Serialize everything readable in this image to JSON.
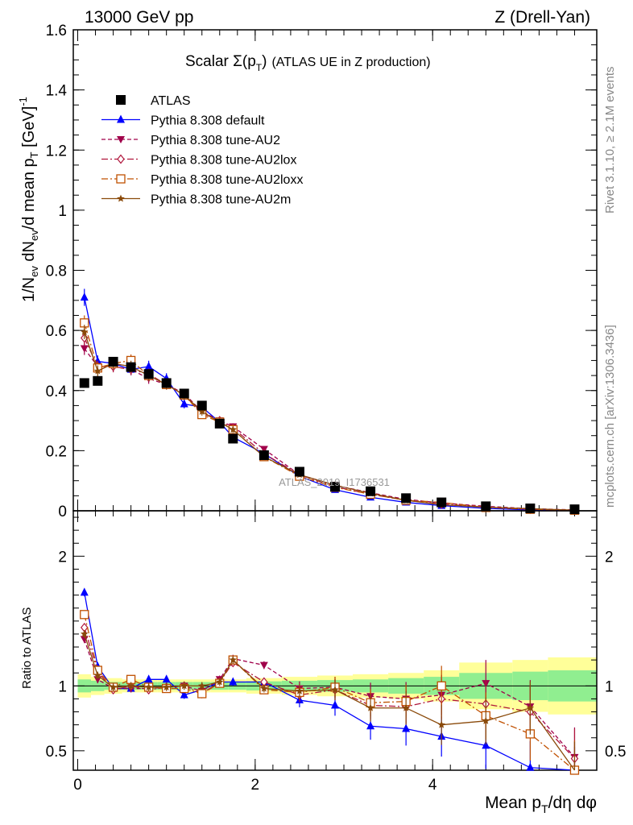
{
  "header": {
    "left": "13000 GeV pp",
    "right": "Z (Drell-Yan)"
  },
  "side_labels": {
    "rivet": "Rivet 3.1.10, ≥ 2.1M events",
    "mcplots": "mcplots.cern.ch [arXiv:1306.3436]"
  },
  "watermark": "ATLAS_2019_I1736531",
  "chart_data": {
    "type": "scatter",
    "title": "Scalar Σ(p_T) (ATLAS UE in Z production)",
    "xlabel": "Mean p_T/dη dφ",
    "ylabel_main": "1/N_ev dN_ev/d mean p_T [GeV]^-1",
    "ylabel_ratio": "Ratio to ATLAS",
    "xlim": [
      -0.05,
      5.85
    ],
    "ylim_main": [
      0,
      1.6
    ],
    "ylim_ratio": [
      0.35,
      2.35
    ],
    "x_ticks": [
      0,
      2,
      4
    ],
    "y_ticks_main": [
      0,
      0.2,
      0.4,
      0.6,
      0.8,
      1,
      1.2,
      1.4,
      1.6
    ],
    "y_ticks_ratio": [
      0.5,
      1,
      2
    ],
    "x": [
      0.075,
      0.225,
      0.4,
      0.6,
      0.8,
      1.0,
      1.2,
      1.4,
      1.6,
      1.75,
      2.1,
      2.5,
      2.9,
      3.3,
      3.7,
      4.1,
      4.6,
      5.1,
      5.6
    ],
    "series": [
      {
        "name": "ATLAS",
        "color": "#000000",
        "marker": "square-filled",
        "line": "none",
        "values": [
          0.425,
          0.432,
          0.496,
          0.478,
          0.455,
          0.425,
          0.39,
          0.35,
          0.29,
          0.24,
          0.185,
          0.13,
          0.08,
          0.065,
          0.042,
          0.028,
          0.015,
          0.008,
          0.005
        ],
        "ratio": [
          1,
          1,
          1,
          1,
          1,
          1,
          1,
          1,
          1,
          1,
          1,
          1,
          1,
          1,
          1,
          1,
          1,
          1,
          1
        ]
      },
      {
        "name": "Pythia 8.308 default",
        "color": "#0000ff",
        "marker": "triangle-up-filled",
        "line": "solid",
        "values": [
          0.71,
          0.497,
          0.49,
          0.47,
          0.48,
          0.44,
          0.355,
          0.345,
          0.295,
          0.245,
          0.19,
          0.115,
          0.07,
          0.045,
          0.028,
          0.017,
          0.008,
          0.003,
          0.001
        ],
        "ratio": [
          1.72,
          1.15,
          0.98,
          0.98,
          1.05,
          1.05,
          0.93,
          0.97,
          1.03,
          1.03,
          1.03,
          0.89,
          0.85,
          0.69,
          0.67,
          0.61,
          0.54,
          0.37,
          0.3
        ]
      },
      {
        "name": "Pythia 8.308 tune-AU2",
        "color": "#a0004a",
        "marker": "triangle-down-filled",
        "line": "dashed",
        "values": [
          0.54,
          0.48,
          0.48,
          0.47,
          0.44,
          0.42,
          0.39,
          0.33,
          0.3,
          0.28,
          0.205,
          0.12,
          0.085,
          0.06,
          0.038,
          0.026,
          0.015,
          0.007,
          0.003
        ],
        "ratio": [
          1.36,
          1.05,
          0.98,
          0.98,
          0.98,
          0.99,
          1.0,
          0.96,
          1.05,
          1.21,
          1.16,
          0.98,
          0.99,
          0.92,
          0.9,
          0.93,
          1.02,
          0.84,
          0.45
        ]
      },
      {
        "name": "Pythia 8.308 tune-AU2lox",
        "color": "#b0163c",
        "marker": "diamond-open",
        "line": "dashdot",
        "values": [
          0.575,
          0.48,
          0.48,
          0.47,
          0.455,
          0.42,
          0.385,
          0.325,
          0.3,
          0.275,
          0.19,
          0.12,
          0.08,
          0.055,
          0.035,
          0.022,
          0.012,
          0.005,
          0.002
        ],
        "ratio": [
          1.45,
          1.11,
          0.97,
          1.0,
          0.97,
          0.99,
          1.0,
          0.94,
          1.03,
          1.18,
          1.03,
          0.93,
          0.97,
          0.85,
          0.84,
          0.9,
          0.86,
          0.8,
          0.44
        ]
      },
      {
        "name": "Pythia 8.308 tune-AU2loxx",
        "color": "#c05000",
        "marker": "square-open",
        "line": "dashdot",
        "values": [
          0.625,
          0.475,
          0.49,
          0.5,
          0.45,
          0.42,
          0.385,
          0.32,
          0.295,
          0.27,
          0.18,
          0.115,
          0.078,
          0.055,
          0.035,
          0.028,
          0.011,
          0.005,
          0.002
        ],
        "ratio": [
          1.55,
          1.12,
          0.99,
          1.05,
          0.99,
          0.98,
          0.98,
          0.94,
          1.02,
          1.2,
          0.97,
          0.95,
          0.99,
          0.87,
          0.88,
          1.0,
          0.77,
          0.63,
          0.35
        ]
      },
      {
        "name": "Pythia 8.308 tune-AU2m",
        "color": "#8a4a0a",
        "marker": "star-filled",
        "line": "solid",
        "values": [
          0.595,
          0.465,
          0.49,
          0.48,
          0.45,
          0.42,
          0.385,
          0.33,
          0.295,
          0.27,
          0.18,
          0.12,
          0.085,
          0.058,
          0.035,
          0.02,
          0.012,
          0.007,
          0.002
        ],
        "ratio": [
          1.4,
          1.08,
          0.99,
          1.0,
          0.99,
          0.99,
          1.0,
          1.0,
          1.03,
          1.2,
          0.98,
          0.96,
          0.97,
          0.83,
          0.83,
          0.7,
          0.73,
          0.83,
          0.34
        ]
      }
    ],
    "bands": {
      "x_edges": [
        0,
        0.15,
        0.3,
        0.5,
        0.7,
        0.9,
        1.1,
        1.3,
        1.5,
        1.7,
        1.9,
        2.3,
        2.7,
        3.1,
        3.5,
        3.9,
        4.3,
        4.9,
        5.3,
        5.85
      ],
      "yellow_half": [
        0.09,
        0.07,
        0.06,
        0.05,
        0.05,
        0.05,
        0.05,
        0.05,
        0.05,
        0.05,
        0.06,
        0.07,
        0.08,
        0.09,
        0.1,
        0.12,
        0.18,
        0.2,
        0.22
      ],
      "green_half": [
        0.05,
        0.04,
        0.03,
        0.03,
        0.03,
        0.03,
        0.03,
        0.03,
        0.03,
        0.03,
        0.035,
        0.04,
        0.045,
        0.05,
        0.06,
        0.07,
        0.1,
        0.11,
        0.12
      ]
    },
    "legend_placement": "top-left"
  }
}
